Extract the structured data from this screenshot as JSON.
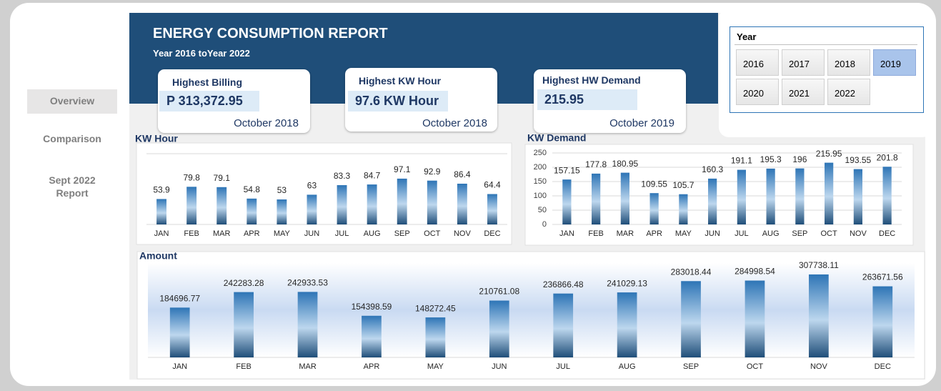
{
  "header": {
    "title": "ENERGY CONSUMPTION REPORT",
    "subtitle": "Year 2016 toYear 2022"
  },
  "nav": [
    "Overview",
    "Comparison",
    "Sept 2022 Report"
  ],
  "cards": [
    {
      "title": "Highest Billing",
      "value": "P 313,372.95",
      "date": "October 2018"
    },
    {
      "title": "Highest KW Hour",
      "value": "97.6 KW Hour",
      "date": "October 2018"
    },
    {
      "title": "Highest HW Demand",
      "value": "215.95",
      "date": "October 2019"
    }
  ],
  "slicer": {
    "title": "Year",
    "items": [
      "2016",
      "2017",
      "2018",
      "2019",
      "2020",
      "2021",
      "2022"
    ],
    "selected": "2019"
  },
  "chart_data": [
    {
      "type": "bar",
      "title": "KW Hour",
      "categories": [
        "JAN",
        "FEB",
        "MAR",
        "APR",
        "MAY",
        "JUN",
        "JUL",
        "AUG",
        "SEP",
        "OCT",
        "NOV",
        "DEC"
      ],
      "values": [
        53.9,
        79.8,
        79.1,
        54.8,
        53,
        63,
        83.3,
        84.7,
        97.1,
        92.9,
        86.4,
        64.4
      ],
      "color": "#2e75b6",
      "ylim": [
        0,
        150
      ]
    },
    {
      "type": "bar",
      "title": "KW Demand",
      "categories": [
        "JAN",
        "FEB",
        "MAR",
        "APR",
        "MAY",
        "JUN",
        "JUL",
        "AUG",
        "SEP",
        "OCT",
        "NOV",
        "DEC"
      ],
      "values": [
        157.15,
        177.8,
        180.95,
        109.55,
        105.7,
        160.3,
        191.1,
        195.3,
        196,
        215.95,
        193.55,
        201.8
      ],
      "color": "#2e75b6",
      "ylim": [
        0,
        250
      ],
      "yticks": [
        0,
        50,
        100,
        150,
        200,
        250
      ],
      "grid": true
    },
    {
      "type": "bar",
      "title": "Amount",
      "categories": [
        "JAN",
        "FEB",
        "MAR",
        "APR",
        "MAY",
        "JUN",
        "JUL",
        "AUG",
        "SEP",
        "OCT",
        "NOV",
        "DEC"
      ],
      "values": [
        184696.77,
        242283.28,
        242933.53,
        154398.59,
        148272.45,
        210761.08,
        236866.48,
        241029.13,
        283018.44,
        284998.54,
        307738.11,
        263671.56
      ],
      "color": "#2e75b6",
      "ylim": [
        0,
        350000
      ]
    }
  ]
}
